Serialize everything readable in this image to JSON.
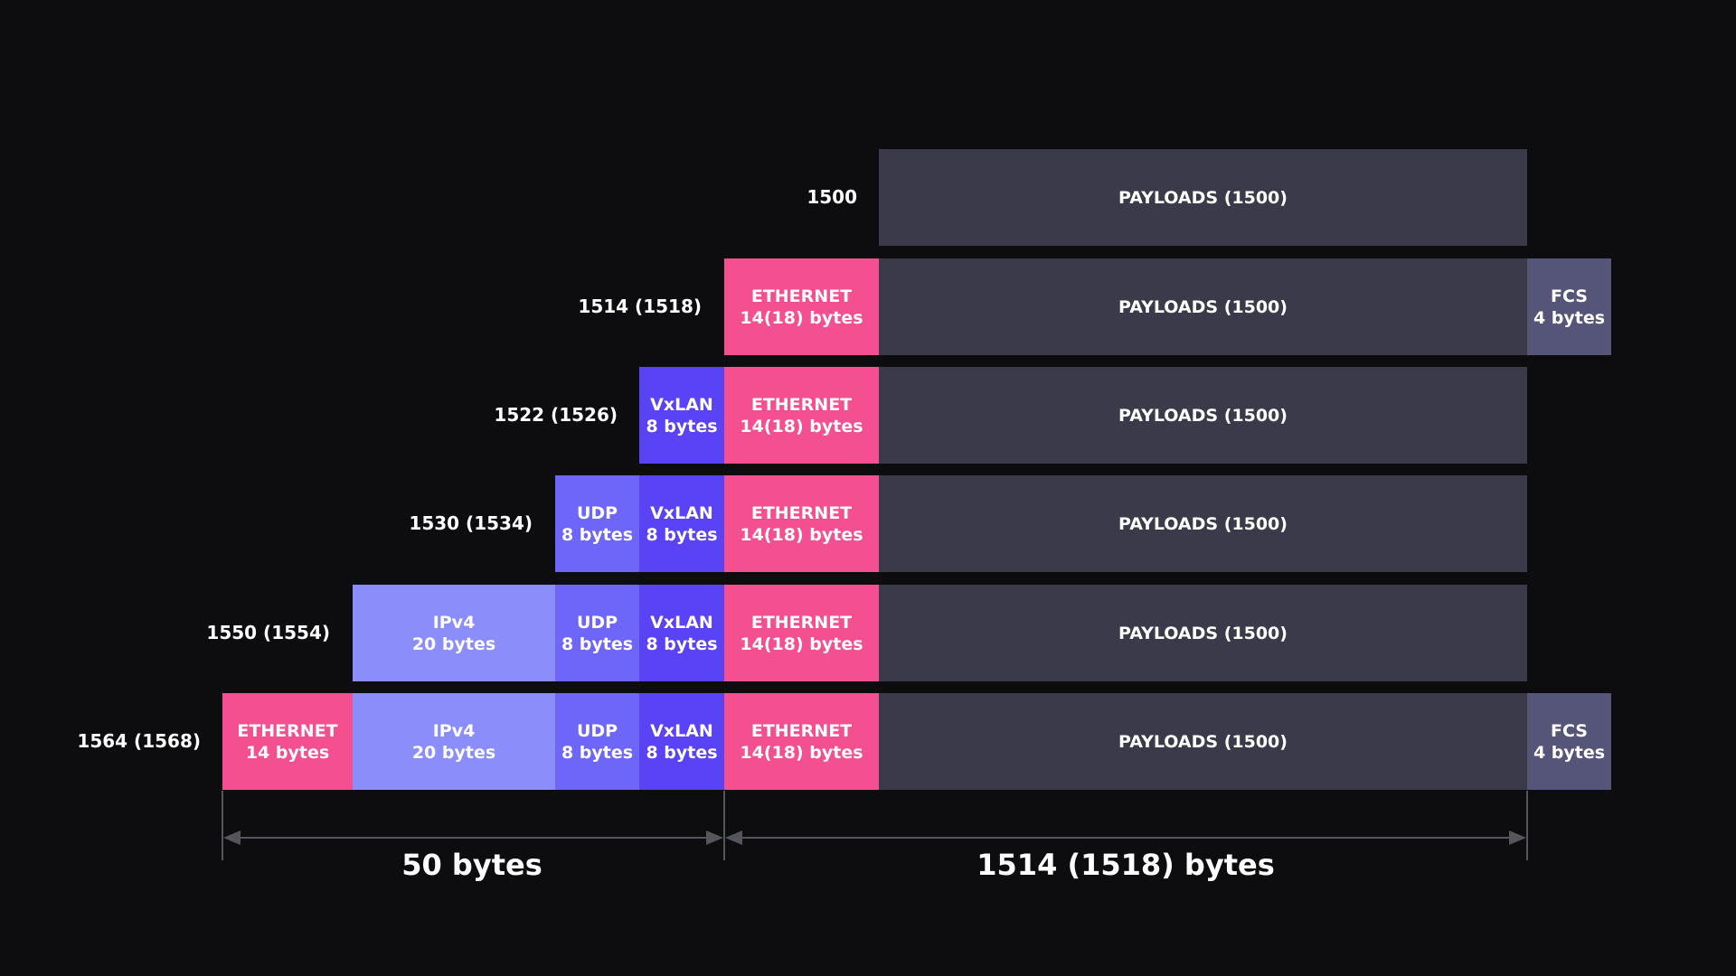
{
  "colors": {
    "background": "#0d0d0f",
    "payload": "#3a3a4b",
    "fcs": "#55557a",
    "ethernet": "#f44f90",
    "vxlan": "#5a42f5",
    "udp": "#6e66f8",
    "ipv4": "#8b8dfa",
    "dimension_line": "#55555c"
  },
  "rows": [
    {
      "label": "1500",
      "segments": [
        {
          "kind": "payload",
          "line1": "PAYLOADS (1500)",
          "line2": ""
        }
      ]
    },
    {
      "label": "1514 (1518)",
      "segments": [
        {
          "kind": "ethernet",
          "line1": "ETHERNET",
          "line2": "14(18) bytes"
        },
        {
          "kind": "payload",
          "line1": "PAYLOADS (1500)",
          "line2": ""
        },
        {
          "kind": "fcs",
          "line1": "FCS",
          "line2": "4 bytes"
        }
      ]
    },
    {
      "label": "1522 (1526)",
      "segments": [
        {
          "kind": "vxlan",
          "line1": "VxLAN",
          "line2": "8 bytes"
        },
        {
          "kind": "ethernet",
          "line1": "ETHERNET",
          "line2": "14(18) bytes"
        },
        {
          "kind": "payload",
          "line1": "PAYLOADS (1500)",
          "line2": ""
        }
      ]
    },
    {
      "label": "1530 (1534)",
      "segments": [
        {
          "kind": "udp",
          "line1": "UDP",
          "line2": "8 bytes"
        },
        {
          "kind": "vxlan",
          "line1": "VxLAN",
          "line2": "8 bytes"
        },
        {
          "kind": "ethernet",
          "line1": "ETHERNET",
          "line2": "14(18) bytes"
        },
        {
          "kind": "payload",
          "line1": "PAYLOADS (1500)",
          "line2": ""
        }
      ]
    },
    {
      "label": "1550 (1554)",
      "segments": [
        {
          "kind": "ipv4",
          "line1": "IPv4",
          "line2": "20 bytes"
        },
        {
          "kind": "udp",
          "line1": "UDP",
          "line2": "8 bytes"
        },
        {
          "kind": "vxlan",
          "line1": "VxLAN",
          "line2": "8 bytes"
        },
        {
          "kind": "ethernet",
          "line1": "ETHERNET",
          "line2": "14(18) bytes"
        },
        {
          "kind": "payload",
          "line1": "PAYLOADS (1500)",
          "line2": ""
        }
      ]
    },
    {
      "label": "1564 (1568)",
      "segments": [
        {
          "kind": "outer-ethernet",
          "line1": "ETHERNET",
          "line2": "14 bytes"
        },
        {
          "kind": "ipv4",
          "line1": "IPv4",
          "line2": "20 bytes"
        },
        {
          "kind": "udp",
          "line1": "UDP",
          "line2": "8 bytes"
        },
        {
          "kind": "vxlan",
          "line1": "VxLAN",
          "line2": "8 bytes"
        },
        {
          "kind": "ethernet",
          "line1": "ETHERNET",
          "line2": "14(18) bytes"
        },
        {
          "kind": "payload",
          "line1": "PAYLOADS (1500)",
          "line2": ""
        },
        {
          "kind": "fcs",
          "line1": "FCS",
          "line2": "4 bytes"
        }
      ]
    }
  ],
  "dimensions": {
    "overhead_label": "50 bytes",
    "frame_label": "1514 (1518) bytes"
  }
}
